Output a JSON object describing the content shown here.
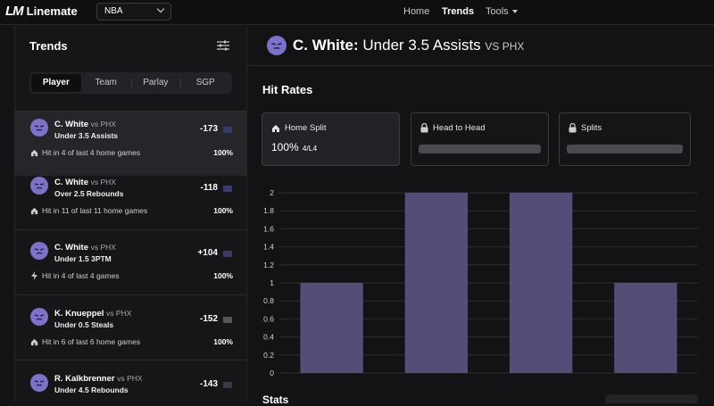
{
  "topbar": {
    "logo_mark": "LM",
    "logo_text": "Linemate",
    "league": "NBA",
    "nav": [
      {
        "label": "Home",
        "active": false
      },
      {
        "label": "Trends",
        "active": true
      },
      {
        "label": "Tools",
        "active": false
      }
    ]
  },
  "sidebar": {
    "title": "Trends",
    "tabs": [
      "Player",
      "Team",
      "Parlay",
      "SGP"
    ],
    "active_tab": "Player",
    "cards": [
      {
        "player": "C. White",
        "opp": "vs PHX",
        "market": "Under 3.5 Assists",
        "odds": "-173",
        "book_color": "#3b3b6b",
        "hit_icon": "home-icon",
        "hit_text": "Hit in 4 of last 4 home games",
        "pct": "100%",
        "selected": true
      },
      {
        "player": "C. White",
        "opp": "vs PHX",
        "market": "Over 2.5 Rebounds",
        "odds": "-118",
        "book_color": "#3b3b6b",
        "hit_icon": "home-icon",
        "hit_text": "Hit in 11 of last 11 home games",
        "pct": "100%",
        "selected": false
      },
      {
        "player": "C. White",
        "opp": "vs PHX",
        "market": "Under 1.5 3PTM",
        "odds": "+104",
        "book_color": "#3b3b6b",
        "hit_icon": "lightning-icon",
        "hit_text": "Hit in 4 of last 4 games",
        "pct": "100%",
        "selected": false
      },
      {
        "player": "K. Knueppel",
        "opp": "vs PHX",
        "market": "Under 0.5 Steals",
        "odds": "-152",
        "book_color": "#55555a",
        "hit_icon": "home-icon",
        "hit_text": "Hit in 6 of last 6 home games",
        "pct": "100%",
        "selected": false
      },
      {
        "player": "R. Kalkbrenner",
        "opp": "vs PHX",
        "market": "Under 4.5 Rebounds",
        "odds": "-143",
        "book_color": "#3b3b48",
        "hit_icon": "",
        "hit_text": "",
        "pct": "",
        "selected": false
      }
    ]
  },
  "main": {
    "player": "C. White:",
    "market": "Under 3.5 Assists",
    "opp": "VS PHX",
    "section_title": "Hit Rates",
    "splits": [
      {
        "label": "Home Split",
        "icon": "home-icon",
        "value": "100%",
        "record": "4/L4",
        "locked": false
      },
      {
        "label": "Head to Head",
        "icon": "lock-icon",
        "locked": true
      },
      {
        "label": "Splits",
        "icon": "lock-icon",
        "locked": true
      }
    ],
    "stats_label": "Stats"
  },
  "colors": {
    "accent": "#7c72c8",
    "bar": "#524e77",
    "background": "#131316"
  },
  "chart_data": {
    "type": "bar",
    "categories": [
      "",
      "",
      "",
      ""
    ],
    "values": [
      1,
      2,
      2,
      1
    ],
    "ylim": [
      0,
      2
    ],
    "yticks": [
      "0",
      "0.2",
      "0.4",
      "0.6",
      "0.8",
      "1",
      "1.2",
      "1.4",
      "1.6",
      "1.8",
      "2"
    ],
    "grid": true,
    "xlabel": "",
    "ylabel": ""
  }
}
